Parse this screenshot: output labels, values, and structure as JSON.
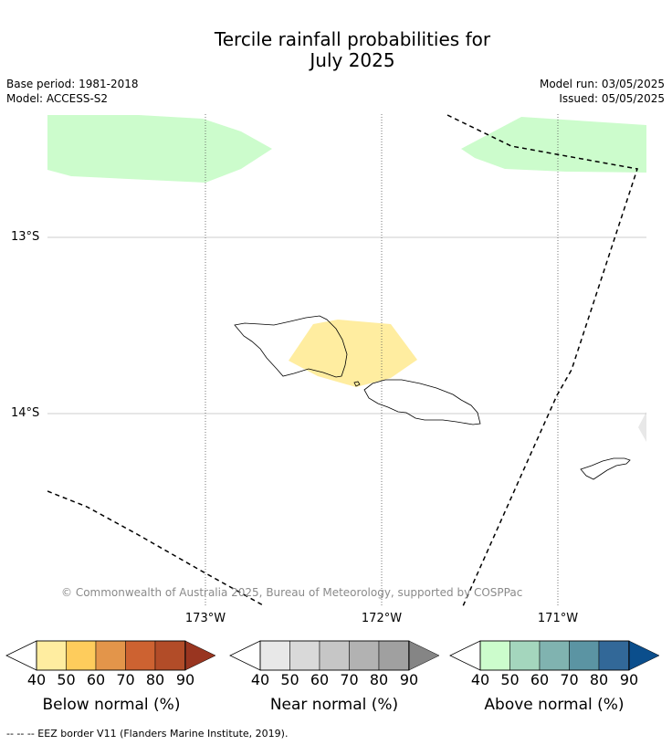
{
  "title": {
    "line1": "Tercile rainfall probabilities for",
    "line2": "July 2025"
  },
  "meta": {
    "base_period": "Base period: 1981-2018",
    "model": "Model: ACCESS-S2",
    "model_run": "Model run: 03/05/2025",
    "issued": "Issued: 05/05/2025"
  },
  "map": {
    "lat_labels": [
      "13°S",
      "14°S"
    ],
    "lon_labels": [
      "173°W",
      "172°W",
      "171°W"
    ],
    "copyright": "© Commonwealth of Australia 2025, Bureau of Meteorology, supported by COSPPac",
    "regions": [
      {
        "category": "above normal",
        "probability_band": "40-50"
      },
      {
        "category": "below normal",
        "probability_band": "40-50"
      },
      {
        "category": "near normal",
        "probability_band": "40-50"
      }
    ]
  },
  "colorbars": [
    {
      "title": "Below normal (%)",
      "ticks": [
        "40",
        "50",
        "60",
        "70",
        "80",
        "90"
      ],
      "colors": [
        "#ffeda0",
        "#fecc5c",
        "#e3954a",
        "#cd6231",
        "#b24c28",
        "#993520"
      ]
    },
    {
      "title": "Near normal (%)",
      "ticks": [
        "40",
        "50",
        "60",
        "70",
        "80",
        "90"
      ],
      "colors": [
        "#e8e8e8",
        "#d9d9d9",
        "#c6c6c6",
        "#b2b2b2",
        "#a0a0a0",
        "#858585"
      ]
    },
    {
      "title": "Above normal (%)",
      "ticks": [
        "40",
        "50",
        "60",
        "70",
        "80",
        "90"
      ],
      "colors": [
        "#ccfccc",
        "#a4d6bd",
        "#80b3b0",
        "#5b94a3",
        "#326898",
        "#0b4e8c"
      ]
    }
  ],
  "footnote": "--  --  -- EEZ border V11 (Flanders Marine Institute, 2019)."
}
